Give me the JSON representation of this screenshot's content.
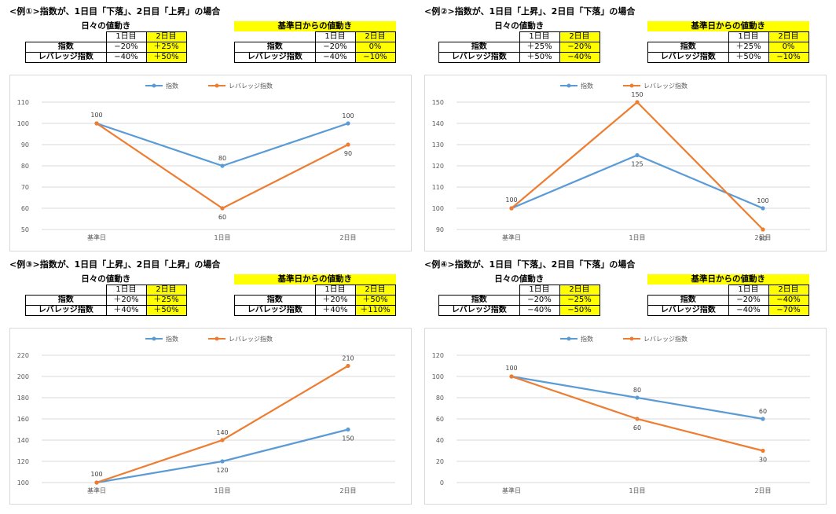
{
  "colors": {
    "index": "#5b9bd5",
    "leverage": "#ed7d31",
    "highlight": "#ffff00",
    "grid": "#d9d9d9"
  },
  "panels": [
    {
      "heading": "<例①>指数が、1日目「下落」、2日目「上昇」の場合",
      "daily": {
        "caption": "日々の値動き",
        "headers": [
          "1日目",
          "2日目"
        ],
        "rows": [
          {
            "label": "指数",
            "values": [
              "−20%",
              "＋25%"
            ]
          },
          {
            "label": "レバレッジ指数",
            "values": [
              "−40%",
              "＋50%"
            ]
          }
        ]
      },
      "base": {
        "caption": "基準日からの値動き",
        "headers": [
          "1日目",
          "2日目"
        ],
        "rows": [
          {
            "label": "指数",
            "values": [
              "−20%",
              "0%"
            ]
          },
          {
            "label": "レバレッジ指数",
            "values": [
              "−40%",
              "−10%"
            ]
          }
        ]
      }
    },
    {
      "heading": "<例②>指数が、1日目「上昇」、2日目「下落」の場合",
      "daily": {
        "caption": "日々の値動き",
        "headers": [
          "1日目",
          "2日目"
        ],
        "rows": [
          {
            "label": "指数",
            "values": [
              "＋25%",
              "−20%"
            ]
          },
          {
            "label": "レバレッジ指数",
            "values": [
              "＋50%",
              "−40%"
            ]
          }
        ]
      },
      "base": {
        "caption": "基準日からの値動き",
        "headers": [
          "1日目",
          "2日目"
        ],
        "rows": [
          {
            "label": "指数",
            "values": [
              "＋25%",
              "0%"
            ]
          },
          {
            "label": "レバレッジ指数",
            "values": [
              "＋50%",
              "−10%"
            ]
          }
        ]
      }
    },
    {
      "heading": "<例③>指数が、1日目「上昇」、2日目「上昇」の場合",
      "daily": {
        "caption": "日々の値動き",
        "headers": [
          "1日目",
          "2日目"
        ],
        "rows": [
          {
            "label": "指数",
            "values": [
              "＋20%",
              "＋25%"
            ]
          },
          {
            "label": "レバレッジ指数",
            "values": [
              "＋40%",
              "＋50%"
            ]
          }
        ]
      },
      "base": {
        "caption": "基準日からの値動き",
        "headers": [
          "1日目",
          "2日目"
        ],
        "rows": [
          {
            "label": "指数",
            "values": [
              "＋20%",
              "＋50%"
            ]
          },
          {
            "label": "レバレッジ指数",
            "values": [
              "＋40%",
              "＋110%"
            ]
          }
        ]
      }
    },
    {
      "heading": "<例④>指数が、1日目「下落」、2日目「下落」の場合",
      "daily": {
        "caption": "日々の値動き",
        "headers": [
          "1日目",
          "2日目"
        ],
        "rows": [
          {
            "label": "指数",
            "values": [
              "−20%",
              "−25%"
            ]
          },
          {
            "label": "レバレッジ指数",
            "values": [
              "−40%",
              "−50%"
            ]
          }
        ]
      },
      "base": {
        "caption": "基準日からの値動き",
        "headers": [
          "1日目",
          "2日目"
        ],
        "rows": [
          {
            "label": "指数",
            "values": [
              "−20%",
              "−40%"
            ]
          },
          {
            "label": "レバレッジ指数",
            "values": [
              "−40%",
              "−70%"
            ]
          }
        ]
      }
    }
  ],
  "chart_data": [
    {
      "type": "line",
      "categories": [
        "基準日",
        "1日目",
        "2日目"
      ],
      "ylim": [
        50,
        110
      ],
      "yticks": [
        "50",
        "60",
        "70",
        "80",
        "90",
        "100",
        "110"
      ],
      "series": [
        {
          "name": "指数",
          "values": [
            100,
            80,
            100
          ],
          "labels": [
            "100",
            "80",
            "100"
          ]
        },
        {
          "name": "レバレッジ指数",
          "values": [
            100,
            60,
            90
          ],
          "labels": [
            "100",
            "60",
            "90"
          ]
        }
      ],
      "legend": "top-center"
    },
    {
      "type": "line",
      "categories": [
        "基準日",
        "1日目",
        "2日目"
      ],
      "ylim": [
        90,
        150
      ],
      "yticks": [
        "90",
        "100",
        "110",
        "120",
        "130",
        "140",
        "150"
      ],
      "series": [
        {
          "name": "指数",
          "values": [
            100,
            125,
            100
          ],
          "labels": [
            "100",
            "125",
            "100"
          ]
        },
        {
          "name": "レバレッジ指数",
          "values": [
            100,
            150,
            90
          ],
          "labels": [
            "100",
            "150",
            "90"
          ]
        }
      ],
      "legend": "top-center"
    },
    {
      "type": "line",
      "categories": [
        "基準日",
        "1日目",
        "2日目"
      ],
      "ylim": [
        100,
        220
      ],
      "yticks": [
        "100",
        "120",
        "140",
        "160",
        "180",
        "200",
        "220"
      ],
      "series": [
        {
          "name": "指数",
          "values": [
            100,
            120,
            150
          ],
          "labels": [
            "100",
            "120",
            "150"
          ]
        },
        {
          "name": "レバレッジ指数",
          "values": [
            100,
            140,
            210
          ],
          "labels": [
            "100",
            "140",
            "210"
          ]
        }
      ],
      "legend": "top-center"
    },
    {
      "type": "line",
      "categories": [
        "基準日",
        "1日目",
        "2日目"
      ],
      "ylim": [
        0,
        120
      ],
      "yticks": [
        "0",
        "20",
        "40",
        "60",
        "80",
        "100",
        "120"
      ],
      "series": [
        {
          "name": "指数",
          "values": [
            100,
            80,
            60
          ],
          "labels": [
            "100",
            "80",
            "60"
          ]
        },
        {
          "name": "レバレッジ指数",
          "values": [
            100,
            60,
            30
          ],
          "labels": [
            "100",
            "60",
            "30"
          ]
        }
      ],
      "legend": "top-center"
    }
  ]
}
